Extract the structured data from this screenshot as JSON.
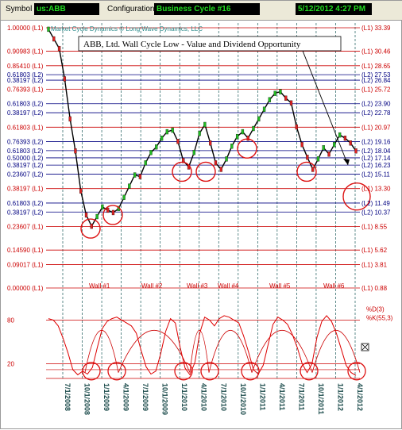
{
  "toolbar": {
    "symbol_label": "Symbol",
    "symbol_value": "us:ABB",
    "configuration_label": "Configuration",
    "configuration_value": "Business Cycle #16",
    "datetime": "5/12/2012 4:27 PM"
  },
  "chart_data": [
    {
      "type": "line",
      "title": "ABB, Ltd. Wall Cycle Low - Value and Dividend Opportunity",
      "watermark": "Market Cycle Dynamics © Long Wave Dynamics, LLC",
      "series": [
        {
          "values": [
            33.2,
            32.0,
            30.8,
            27.0,
            22.0,
            18.0,
            13.0,
            10.0,
            8.6,
            9.8,
            11.0,
            10.6,
            10.3,
            10.8,
            12.2,
            13.6,
            15.0,
            14.8,
            16.5,
            17.8,
            18.5,
            19.6,
            20.4,
            20.6,
            19.2,
            16.8,
            16.0,
            17.8,
            20.2,
            21.3,
            19.0,
            16.5,
            15.7,
            17.0,
            18.6,
            19.8,
            20.4,
            19.6,
            20.8,
            22.0,
            23.2,
            24.4,
            25.2,
            25.4,
            24.6,
            24.0,
            21.0,
            18.8,
            17.2,
            15.7,
            17.0,
            18.4,
            17.6,
            18.8,
            20.0,
            19.6,
            19.0,
            18.0
          ]
        }
      ],
      "x_tick_labels": [
        "7/1/2008",
        "10/1/2008",
        "1/1/2009",
        "4/1/2009",
        "7/1/2009",
        "10/1/2009",
        "1/1/2010",
        "4/1/2010",
        "7/1/2010",
        "10/1/2010",
        "1/1/2011",
        "4/1/2011",
        "7/1/2011",
        "10/1/2011",
        "1/1/2012",
        "4/1/2012"
      ],
      "left_levels": [
        {
          "label": "1.00000 (L1)",
          "value": 33.39,
          "color": "#cc0000"
        },
        {
          "label": "0.90983 (L1)",
          "value": 30.46,
          "color": "#cc0000"
        },
        {
          "label": "0.85410 (L1)",
          "value": 28.65,
          "color": "#cc0000"
        },
        {
          "label": "0.61803 (L2)",
          "value": 27.53,
          "color": "#000080"
        },
        {
          "label": "0.38197 (L2)",
          "value": 26.84,
          "color": "#000080"
        },
        {
          "label": "0.76393 (L1)",
          "value": 25.72,
          "color": "#cc0000"
        },
        {
          "label": "0.61803 (L2)",
          "value": 23.9,
          "color": "#000080"
        },
        {
          "label": "0.38197 (L2)",
          "value": 22.78,
          "color": "#000080"
        },
        {
          "label": "0.61803 (L1)",
          "value": 20.97,
          "color": "#cc0000"
        },
        {
          "label": "0.76393 (L2)",
          "value": 19.16,
          "color": "#000080"
        },
        {
          "label": "0.61803 (L2)",
          "value": 18.04,
          "color": "#000080"
        },
        {
          "label": "0.50000 (L2)",
          "value": 17.14,
          "color": "#000080"
        },
        {
          "label": "0.38197 (L2)",
          "value": 16.23,
          "color": "#000080"
        },
        {
          "label": "0.23607 (L2)",
          "value": 15.11,
          "color": "#000080"
        },
        {
          "label": "0.38197 (L1)",
          "value": 13.3,
          "color": "#cc0000"
        },
        {
          "label": "0.61803 (L2)",
          "value": 11.49,
          "color": "#000080"
        },
        {
          "label": "0.38197 (L2)",
          "value": 10.37,
          "color": "#000080"
        },
        {
          "label": "0.23607 (L1)",
          "value": 8.55,
          "color": "#cc0000"
        },
        {
          "label": "0.14590 (L1)",
          "value": 5.62,
          "color": "#cc0000"
        },
        {
          "label": "0.09017 (L1)",
          "value": 3.81,
          "color": "#cc0000"
        },
        {
          "label": "0.00000 (L1)",
          "value": 0.88,
          "color": "#cc0000"
        }
      ],
      "right_levels": [
        {
          "label": "(L1) 33.39",
          "value": 33.39
        },
        {
          "label": "(L1) 30.46",
          "value": 30.46
        },
        {
          "label": "(L1) 28.65",
          "value": 28.65
        },
        {
          "label": "(L2) 27.53",
          "value": 27.53
        },
        {
          "label": "(L2) 26.84",
          "value": 26.84
        },
        {
          "label": "(L1) 25.72",
          "value": 25.72
        },
        {
          "label": "(L2) 23.90",
          "value": 23.9
        },
        {
          "label": "(L2) 22.78",
          "value": 22.78
        },
        {
          "label": "(L1) 20.97",
          "value": 20.97
        },
        {
          "label": "(L2) 19.16",
          "value": 19.16
        },
        {
          "label": "(L2) 18.04",
          "value": 18.04
        },
        {
          "label": "(L2) 17.14",
          "value": 17.14
        },
        {
          "label": "(L2) 16.23",
          "value": 16.23
        },
        {
          "label": "(L2) 15.11",
          "value": 15.11
        },
        {
          "label": "(L1) 13.30",
          "value": 13.3
        },
        {
          "label": "(L2) 11.49",
          "value": 11.49
        },
        {
          "label": "(L2) 10.37",
          "value": 10.37
        },
        {
          "label": "(L1) 8.55",
          "value": 8.55
        },
        {
          "label": "(L1) 5.62",
          "value": 5.62
        },
        {
          "label": "(L1) 3.81",
          "value": 3.81
        },
        {
          "label": "(L1) 0.88",
          "value": 0.88
        }
      ],
      "price_lows_circled": [
        8.6,
        10.3,
        15.7,
        15.7,
        18.6,
        15.7,
        13.3
      ],
      "walls": [
        {
          "label": "Wall #1"
        },
        {
          "label": "Wall #2"
        },
        {
          "label": "Wall #3"
        },
        {
          "label": "Wall #4"
        },
        {
          "label": "Wall #5"
        },
        {
          "label": "Wall #6"
        }
      ]
    },
    {
      "type": "line",
      "ylim": [
        0,
        100
      ],
      "y_tick_labels": [
        "80",
        "20"
      ],
      "legend": [
        "%D(3)",
        "%K(55,3)"
      ],
      "legend_position": "right",
      "series": [
        {
          "values": [
            82,
            80,
            72,
            55,
            35,
            12,
            5,
            10,
            6,
            15,
            42,
            68,
            78,
            82,
            84,
            80,
            76,
            72,
            62,
            38,
            16,
            6,
            10,
            34,
            64,
            82,
            76,
            42,
            14,
            5,
            22,
            62,
            84,
            80,
            72,
            82,
            86,
            84,
            80,
            76,
            58,
            36,
            12,
            6,
            18,
            46,
            74,
            84,
            80,
            74,
            60,
            42,
            20,
            8,
            20,
            56,
            78,
            86,
            78,
            62,
            40,
            18,
            8,
            4
          ]
        }
      ]
    }
  ]
}
